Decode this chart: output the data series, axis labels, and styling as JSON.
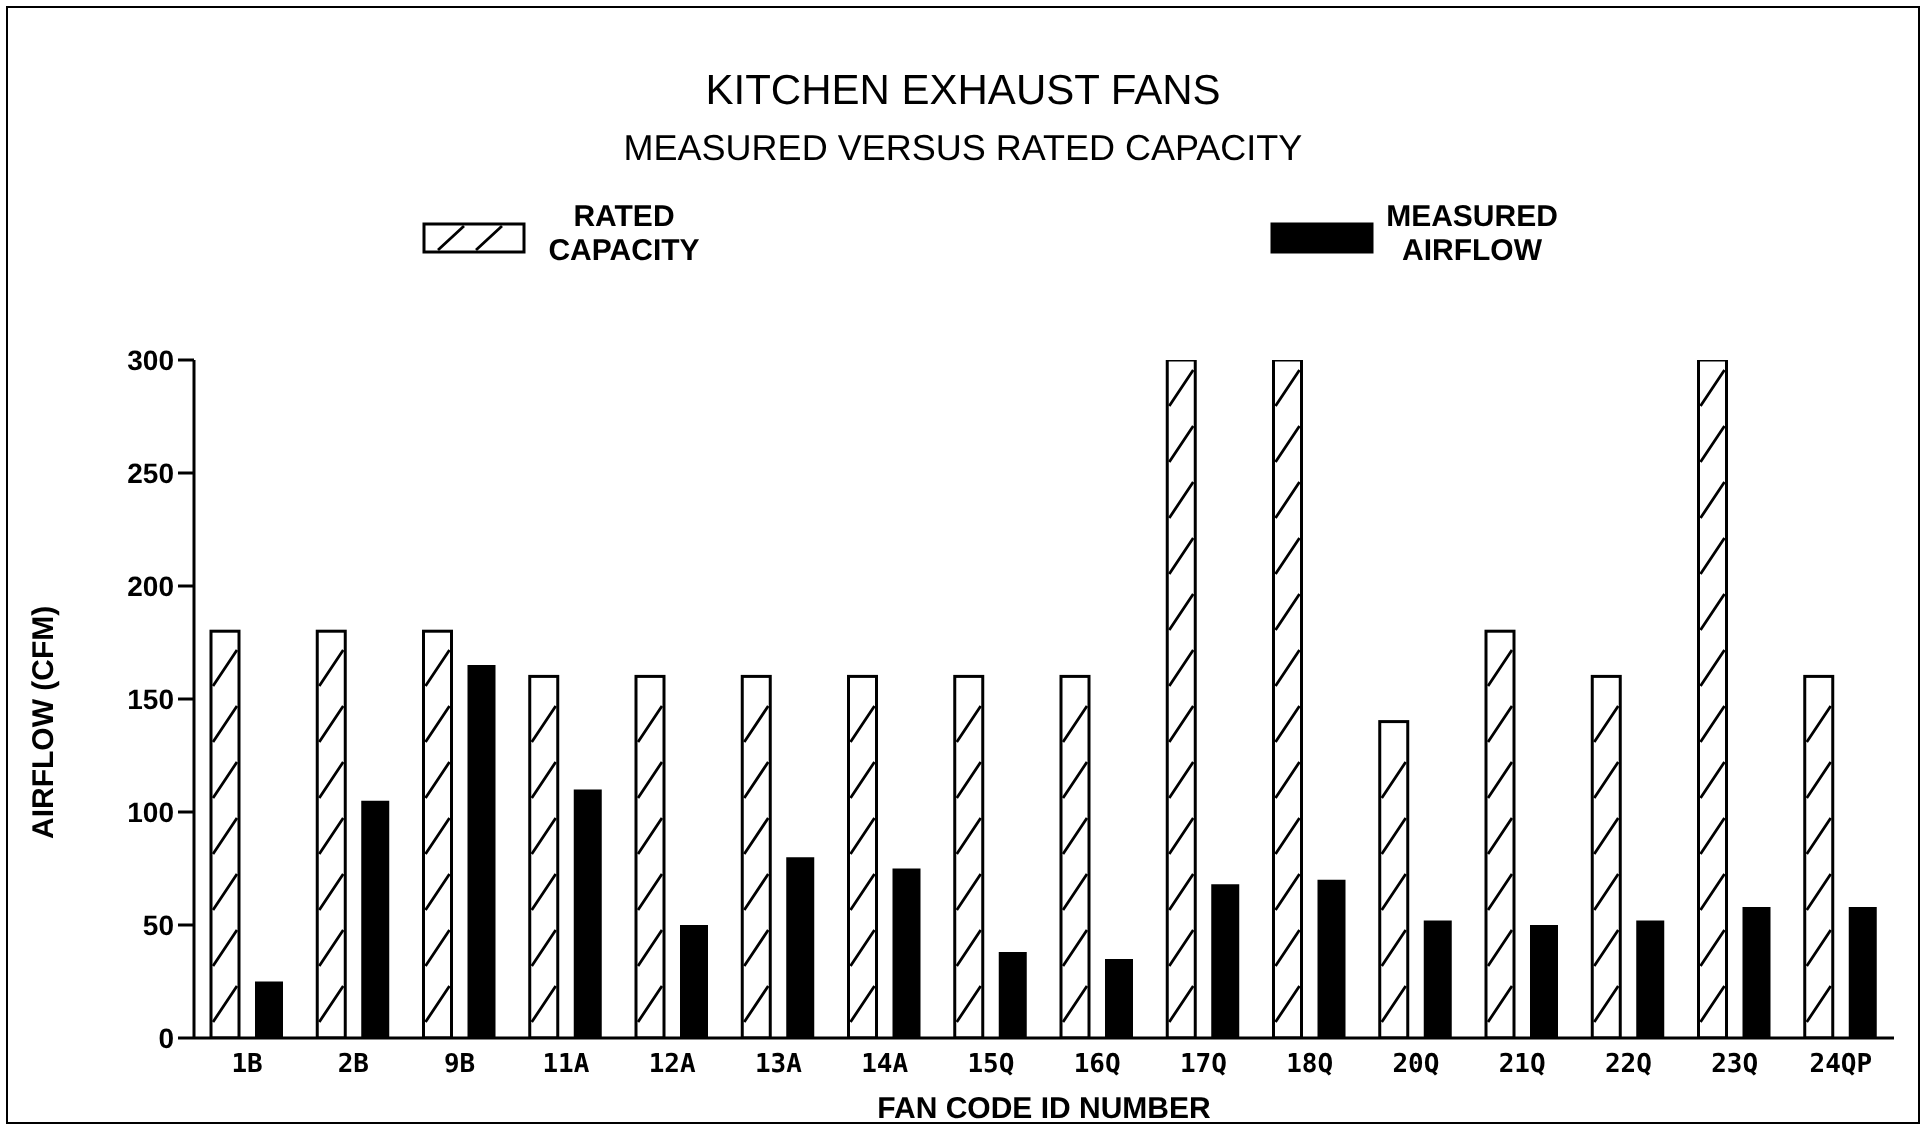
{
  "chart_data": {
    "type": "bar",
    "title": "KITCHEN EXHAUST FANS",
    "subtitle": "MEASURED VERSUS RATED CAPACITY",
    "xlabel": "FAN CODE ID NUMBER",
    "ylabel": "AIRFLOW (CFM)",
    "categories": [
      "1B",
      "2B",
      "9B",
      "11A",
      "12A",
      "13A",
      "14A",
      "15Q",
      "16Q",
      "17Q",
      "18Q",
      "20Q",
      "21Q",
      "22Q",
      "23Q",
      "24QP"
    ],
    "series": [
      {
        "name": "RATED CAPACITY",
        "color": "#ffffff",
        "values": [
          180,
          180,
          180,
          160,
          160,
          160,
          160,
          160,
          160,
          300,
          300,
          140,
          180,
          160,
          300,
          160
        ]
      },
      {
        "name": "MEASURED AIRFLOW",
        "color": "#000000",
        "values": [
          25,
          105,
          165,
          110,
          50,
          80,
          75,
          38,
          35,
          68,
          70,
          52,
          50,
          52,
          58,
          58
        ]
      }
    ],
    "ylim": [
      0,
      300
    ],
    "yticks": [
      0,
      50,
      100,
      150,
      200,
      250,
      300
    ],
    "grid": false,
    "legend": "top"
  }
}
